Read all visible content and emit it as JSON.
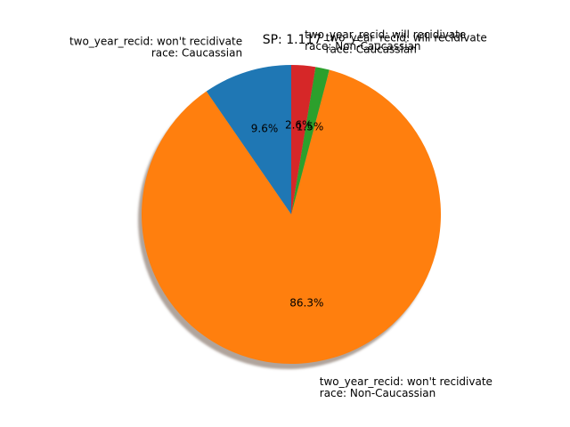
{
  "chart_data": {
    "type": "pie",
    "title": "SP: 1.117",
    "start_angle_deg": 90,
    "direction": "counterclockwise",
    "shadow": true,
    "slices": [
      {
        "label_lines": [
          "two_year_recid: won't recidivate",
          "race: Caucassian"
        ],
        "value": 9.6,
        "pct_label": "9.6%",
        "color": "#1f77b4",
        "label_side": "left"
      },
      {
        "label_lines": [
          "two_year_recid: won't recidivate",
          "race: Non-Caucassian"
        ],
        "value": 86.3,
        "pct_label": "86.3%",
        "color": "#ff7f0e",
        "label_side": "right"
      },
      {
        "label_lines": [
          "two_year_recid: will recidivate",
          "race: Caucassian"
        ],
        "value": 1.5,
        "pct_label": "1.5%",
        "color": "#2ca02c",
        "label_side": "right"
      },
      {
        "label_lines": [
          "two_year_recid: will recidivate",
          "race: Non-Caucassian"
        ],
        "value": 2.6,
        "pct_label": "2.6%",
        "color": "#d62728",
        "label_side": "right"
      }
    ]
  }
}
